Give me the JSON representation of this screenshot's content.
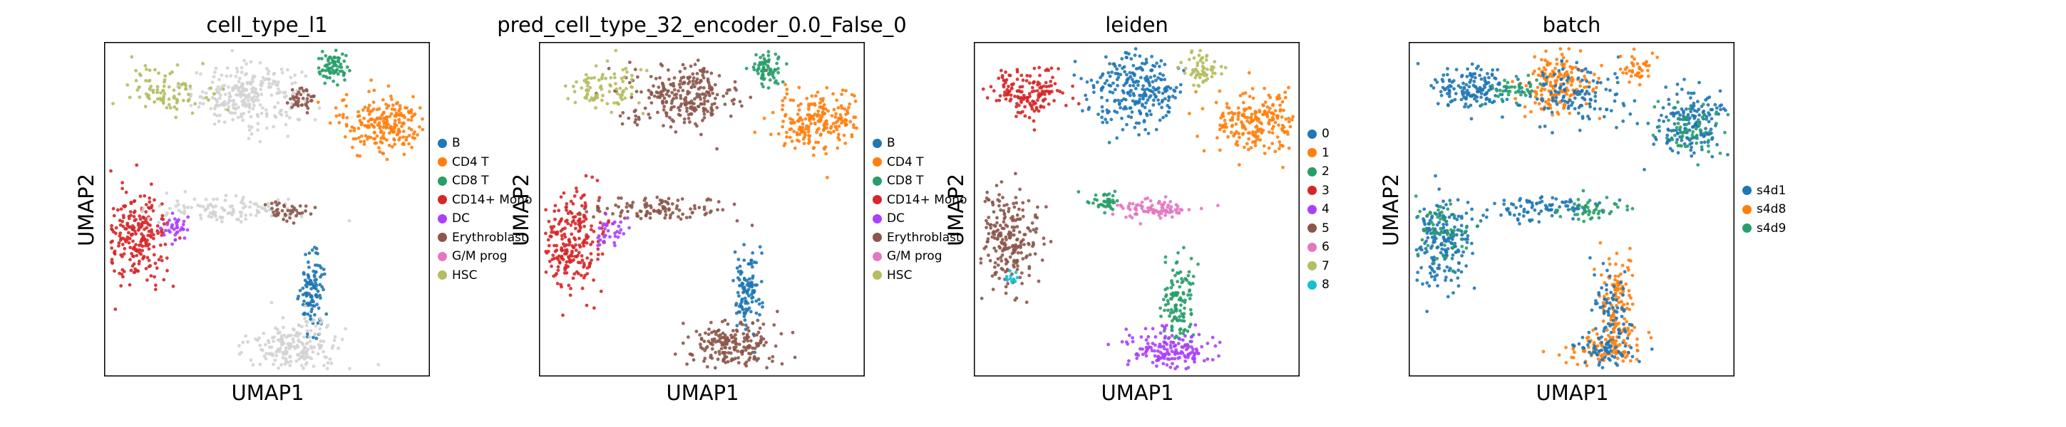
{
  "colors": {
    "unlabeled": "#d3d3d3",
    "tab10": [
      "#1f77b4",
      "#ff7f0e",
      "#279e68",
      "#d62728",
      "#aa40fc",
      "#8c564b",
      "#e377c2",
      "#b5bd61",
      "#17becf"
    ]
  },
  "chart_data": [
    {
      "type": "scatter",
      "title": "cell_type_l1",
      "xlabel": "UMAP1",
      "ylabel": "UMAP2",
      "ticks": false,
      "legend": {
        "placement": "right",
        "entries": [
          {
            "label": "B",
            "color": "#1f77b4"
          },
          {
            "label": "CD4 T",
            "color": "#ff7f0e"
          },
          {
            "label": "CD8 T",
            "color": "#279e68"
          },
          {
            "label": "CD14+ Mono",
            "color": "#d62728"
          },
          {
            "label": "DC",
            "color": "#aa40fc"
          },
          {
            "label": "Erythroblast",
            "color": "#8c564b"
          },
          {
            "label": "G/M prog",
            "color": "#e377c2"
          },
          {
            "label": "HSC",
            "color": "#b5bd61"
          }
        ]
      },
      "clusters": [
        {
          "category": "unlabeled",
          "x": 0.44,
          "y": 0.84,
          "sx": 0.085,
          "sy": 0.045,
          "n": 260
        },
        {
          "category": "HSC",
          "x": 0.2,
          "y": 0.86,
          "sx": 0.06,
          "sy": 0.035,
          "n": 90
        },
        {
          "category": "CD8 T",
          "x": 0.7,
          "y": 0.92,
          "sx": 0.025,
          "sy": 0.025,
          "n": 70
        },
        {
          "category": "CD4 T",
          "x": 0.86,
          "y": 0.76,
          "sx": 0.07,
          "sy": 0.045,
          "n": 220
        },
        {
          "category": "Erythroblast",
          "x": 0.61,
          "y": 0.83,
          "sx": 0.03,
          "sy": 0.02,
          "n": 40
        },
        {
          "category": "CD14+ Mono",
          "x": 0.1,
          "y": 0.41,
          "sx": 0.05,
          "sy": 0.07,
          "n": 240
        },
        {
          "category": "DC",
          "x": 0.22,
          "y": 0.44,
          "sx": 0.025,
          "sy": 0.02,
          "n": 35
        },
        {
          "category": "unlabeled",
          "x": 0.38,
          "y": 0.5,
          "sx": 0.11,
          "sy": 0.02,
          "n": 110
        },
        {
          "category": "Erythroblast",
          "x": 0.55,
          "y": 0.5,
          "sx": 0.04,
          "sy": 0.015,
          "n": 40
        },
        {
          "category": "B",
          "x": 0.64,
          "y": 0.25,
          "sx": 0.02,
          "sy": 0.06,
          "n": 110
        },
        {
          "category": "unlabeled",
          "x": 0.59,
          "y": 0.09,
          "sx": 0.07,
          "sy": 0.04,
          "n": 200
        }
      ]
    },
    {
      "type": "scatter",
      "title": "pred_cell_type_32_encoder_0.0_False_0",
      "xlabel": "UMAP1",
      "ylabel": "UMAP2",
      "ticks": false,
      "legend": {
        "placement": "right",
        "entries": [
          {
            "label": "B",
            "color": "#1f77b4"
          },
          {
            "label": "CD4 T",
            "color": "#ff7f0e"
          },
          {
            "label": "CD8 T",
            "color": "#279e68"
          },
          {
            "label": "CD14+ Mono",
            "color": "#d62728"
          },
          {
            "label": "DC",
            "color": "#aa40fc"
          },
          {
            "label": "Erythroblast",
            "color": "#8c564b"
          },
          {
            "label": "G/M prog",
            "color": "#e377c2"
          },
          {
            "label": "HSC",
            "color": "#b5bd61"
          }
        ]
      },
      "clusters": [
        {
          "category": "Erythroblast",
          "x": 0.44,
          "y": 0.84,
          "sx": 0.085,
          "sy": 0.045,
          "n": 260
        },
        {
          "category": "HSC",
          "x": 0.2,
          "y": 0.86,
          "sx": 0.06,
          "sy": 0.035,
          "n": 90
        },
        {
          "category": "CD8 T",
          "x": 0.7,
          "y": 0.92,
          "sx": 0.025,
          "sy": 0.025,
          "n": 70
        },
        {
          "category": "CD4 T",
          "x": 0.86,
          "y": 0.76,
          "sx": 0.07,
          "sy": 0.045,
          "n": 220
        },
        {
          "category": "CD14+ Mono",
          "x": 0.1,
          "y": 0.41,
          "sx": 0.05,
          "sy": 0.07,
          "n": 240
        },
        {
          "category": "DC",
          "x": 0.22,
          "y": 0.44,
          "sx": 0.025,
          "sy": 0.02,
          "n": 35
        },
        {
          "category": "Erythroblast",
          "x": 0.38,
          "y": 0.5,
          "sx": 0.11,
          "sy": 0.02,
          "n": 110
        },
        {
          "category": "B",
          "x": 0.64,
          "y": 0.25,
          "sx": 0.02,
          "sy": 0.06,
          "n": 110
        },
        {
          "category": "Erythroblast",
          "x": 0.59,
          "y": 0.09,
          "sx": 0.07,
          "sy": 0.04,
          "n": 200
        }
      ]
    },
    {
      "type": "scatter",
      "title": "leiden",
      "xlabel": "UMAP1",
      "ylabel": "UMAP2",
      "ticks": false,
      "legend": {
        "placement": "right",
        "entries": [
          {
            "label": "0",
            "color": "#1f77b4"
          },
          {
            "label": "1",
            "color": "#ff7f0e"
          },
          {
            "label": "2",
            "color": "#279e68"
          },
          {
            "label": "3",
            "color": "#d62728"
          },
          {
            "label": "4",
            "color": "#aa40fc"
          },
          {
            "label": "5",
            "color": "#8c564b"
          },
          {
            "label": "6",
            "color": "#e377c2"
          },
          {
            "label": "7",
            "color": "#b5bd61"
          },
          {
            "label": "8",
            "color": "#17becf"
          }
        ]
      },
      "clusters": [
        {
          "category": "3",
          "x": 0.17,
          "y": 0.85,
          "sx": 0.06,
          "sy": 0.035,
          "n": 160
        },
        {
          "category": "0",
          "x": 0.5,
          "y": 0.86,
          "sx": 0.07,
          "sy": 0.06,
          "n": 260
        },
        {
          "category": "7",
          "x": 0.7,
          "y": 0.92,
          "sx": 0.025,
          "sy": 0.025,
          "n": 60
        },
        {
          "category": "1",
          "x": 0.86,
          "y": 0.76,
          "sx": 0.07,
          "sy": 0.045,
          "n": 220
        },
        {
          "category": "5",
          "x": 0.1,
          "y": 0.41,
          "sx": 0.05,
          "sy": 0.07,
          "n": 240
        },
        {
          "category": "8",
          "x": 0.12,
          "y": 0.29,
          "sx": 0.01,
          "sy": 0.01,
          "n": 12
        },
        {
          "category": "2",
          "x": 0.4,
          "y": 0.52,
          "sx": 0.03,
          "sy": 0.015,
          "n": 40
        },
        {
          "category": "6",
          "x": 0.55,
          "y": 0.5,
          "sx": 0.06,
          "sy": 0.015,
          "n": 90
        },
        {
          "category": "2",
          "x": 0.63,
          "y": 0.22,
          "sx": 0.025,
          "sy": 0.07,
          "n": 120
        },
        {
          "category": "4",
          "x": 0.6,
          "y": 0.08,
          "sx": 0.06,
          "sy": 0.03,
          "n": 160
        }
      ]
    },
    {
      "type": "scatter",
      "title": "batch",
      "xlabel": "UMAP1",
      "ylabel": "UMAP2",
      "ticks": false,
      "legend": {
        "placement": "right",
        "entries": [
          {
            "label": "s4d1",
            "color": "#1f77b4"
          },
          {
            "label": "s4d8",
            "color": "#ff7f0e"
          },
          {
            "label": "s4d9",
            "color": "#279e68"
          }
        ]
      },
      "clusters": [
        {
          "category": "s4d1",
          "x": 0.2,
          "y": 0.86,
          "sx": 0.06,
          "sy": 0.035,
          "n": 150
        },
        {
          "category": "s4d8",
          "x": 0.46,
          "y": 0.88,
          "sx": 0.06,
          "sy": 0.05,
          "n": 180
        },
        {
          "category": "s4d1",
          "x": 0.5,
          "y": 0.84,
          "sx": 0.07,
          "sy": 0.05,
          "n": 120
        },
        {
          "category": "s4d9",
          "x": 0.32,
          "y": 0.86,
          "sx": 0.05,
          "sy": 0.02,
          "n": 40
        },
        {
          "category": "s4d8",
          "x": 0.7,
          "y": 0.92,
          "sx": 0.025,
          "sy": 0.025,
          "n": 40
        },
        {
          "category": "s4d1",
          "x": 0.86,
          "y": 0.76,
          "sx": 0.07,
          "sy": 0.045,
          "n": 180
        },
        {
          "category": "s4d9",
          "x": 0.86,
          "y": 0.74,
          "sx": 0.06,
          "sy": 0.04,
          "n": 60
        },
        {
          "category": "s4d1",
          "x": 0.1,
          "y": 0.41,
          "sx": 0.05,
          "sy": 0.07,
          "n": 200
        },
        {
          "category": "s4d9",
          "x": 0.1,
          "y": 0.43,
          "sx": 0.05,
          "sy": 0.06,
          "n": 60
        },
        {
          "category": "s4d1",
          "x": 0.4,
          "y": 0.5,
          "sx": 0.1,
          "sy": 0.02,
          "n": 90
        },
        {
          "category": "s4d9",
          "x": 0.55,
          "y": 0.5,
          "sx": 0.06,
          "sy": 0.015,
          "n": 50
        },
        {
          "category": "s4d8",
          "x": 0.64,
          "y": 0.22,
          "sx": 0.025,
          "sy": 0.07,
          "n": 110
        },
        {
          "category": "s4d1",
          "x": 0.62,
          "y": 0.2,
          "sx": 0.03,
          "sy": 0.07,
          "n": 70
        },
        {
          "category": "s4d8",
          "x": 0.6,
          "y": 0.08,
          "sx": 0.06,
          "sy": 0.03,
          "n": 100
        },
        {
          "category": "s4d1",
          "x": 0.6,
          "y": 0.08,
          "sx": 0.05,
          "sy": 0.03,
          "n": 60
        }
      ]
    }
  ]
}
